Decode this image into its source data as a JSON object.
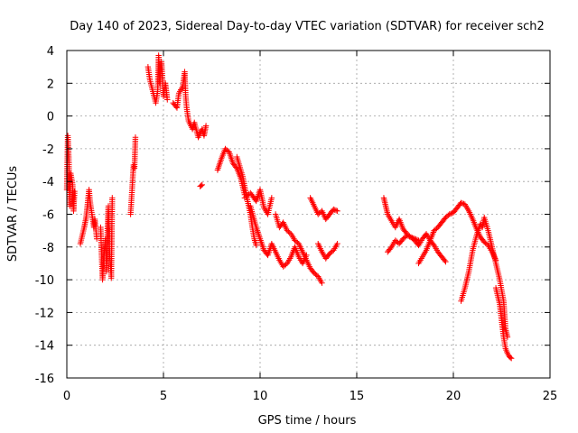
{
  "chart_data": {
    "type": "scatter",
    "title": "Day 140 of 2023, Sidereal Day-to-day VTEC variation (SDTVAR) for receiver sch2",
    "xlabel": "GPS time / hours",
    "ylabel": "SDTVAR / TECUs",
    "xlim": [
      0,
      25
    ],
    "ylim": [
      -16,
      4
    ],
    "xticks": [
      0,
      5,
      10,
      15,
      20,
      25
    ],
    "yticks": [
      -16,
      -14,
      -12,
      -10,
      -8,
      -6,
      -4,
      -2,
      0,
      2,
      4
    ],
    "grid": true,
    "marker": "+",
    "color": "#ff0000",
    "series": [
      {
        "name": "SDTVAR",
        "segments": [
          [
            [
              0.0,
              -4.5
            ],
            [
              0.05,
              -1.2
            ],
            [
              0.1,
              -2.5
            ],
            [
              0.15,
              -5.5
            ],
            [
              0.2,
              -3.5
            ],
            [
              0.3,
              -4.2
            ],
            [
              0.35,
              -5.8
            ],
            [
              0.4,
              -4.6
            ]
          ],
          [
            [
              0.7,
              -7.8
            ],
            [
              0.9,
              -6.8
            ],
            [
              1.0,
              -6.2
            ],
            [
              1.15,
              -4.5
            ],
            [
              1.2,
              -5.2
            ],
            [
              1.4,
              -6.8
            ],
            [
              1.45,
              -6.3
            ],
            [
              1.55,
              -7.5
            ]
          ],
          [
            [
              1.75,
              -6.8
            ],
            [
              1.8,
              -8.5
            ],
            [
              1.85,
              -10.0
            ],
            [
              1.9,
              -8.8
            ],
            [
              2.0,
              -7.5
            ],
            [
              2.05,
              -9.5
            ],
            [
              2.1,
              -7.0
            ],
            [
              2.15,
              -5.5
            ],
            [
              2.2,
              -8.0
            ],
            [
              2.3,
              -9.9
            ],
            [
              2.35,
              -5.0
            ]
          ],
          [
            [
              3.3,
              -6.0
            ],
            [
              3.45,
              -3.0
            ],
            [
              3.5,
              -3.2
            ],
            [
              3.55,
              -1.3
            ]
          ],
          [
            [
              4.2,
              3.0
            ],
            [
              4.3,
              2.2
            ],
            [
              4.6,
              0.8
            ],
            [
              4.7,
              1.5
            ],
            [
              4.75,
              3.7
            ],
            [
              4.8,
              2.0
            ],
            [
              4.9,
              3.3
            ],
            [
              5.0,
              1.2
            ],
            [
              5.1,
              2.0
            ],
            [
              5.2,
              1.0
            ]
          ],
          [
            [
              5.5,
              0.8
            ],
            [
              5.7,
              0.5
            ],
            [
              5.8,
              1.4
            ],
            [
              6.0,
              1.8
            ],
            [
              6.1,
              2.7
            ],
            [
              6.15,
              1.2
            ],
            [
              6.2,
              0.5
            ],
            [
              6.3,
              -0.3
            ],
            [
              6.5,
              -0.8
            ],
            [
              6.6,
              -0.4
            ],
            [
              6.8,
              -1.3
            ],
            [
              7.0,
              -0.8
            ],
            [
              7.1,
              -1.2
            ],
            [
              7.2,
              -0.6
            ]
          ],
          [
            [
              6.9,
              -4.3
            ],
            [
              7.0,
              -4.2
            ]
          ],
          [
            [
              7.8,
              -3.3
            ],
            [
              8.0,
              -2.6
            ],
            [
              8.2,
              -2.0
            ],
            [
              8.4,
              -2.2
            ],
            [
              8.6,
              -2.9
            ],
            [
              8.8,
              -3.2
            ],
            [
              9.0,
              -3.8
            ],
            [
              9.2,
              -4.8
            ]
          ],
          [
            [
              8.8,
              -2.5
            ],
            [
              9.1,
              -3.7
            ],
            [
              9.3,
              -4.9
            ],
            [
              9.5,
              -6.0
            ],
            [
              9.6,
              -6.8
            ],
            [
              9.7,
              -7.5
            ],
            [
              9.8,
              -7.9
            ]
          ],
          [
            [
              9.2,
              -5.0
            ],
            [
              9.5,
              -4.7
            ],
            [
              9.8,
              -5.2
            ],
            [
              10.0,
              -4.5
            ],
            [
              10.2,
              -5.6
            ],
            [
              10.4,
              -6.0
            ],
            [
              10.6,
              -5.0
            ]
          ],
          [
            [
              9.5,
              -5.5
            ],
            [
              9.8,
              -6.8
            ],
            [
              10.0,
              -7.5
            ],
            [
              10.2,
              -8.2
            ],
            [
              10.4,
              -8.5
            ],
            [
              10.6,
              -7.8
            ],
            [
              10.8,
              -8.3
            ],
            [
              11.0,
              -8.8
            ],
            [
              11.2,
              -9.2
            ],
            [
              11.4,
              -9.0
            ],
            [
              11.6,
              -8.6
            ],
            [
              11.8,
              -8.0
            ],
            [
              12.0,
              -8.6
            ],
            [
              12.2,
              -9.0
            ],
            [
              12.4,
              -8.5
            ]
          ],
          [
            [
              10.8,
              -6.0
            ],
            [
              11.0,
              -6.8
            ],
            [
              11.2,
              -6.5
            ],
            [
              11.4,
              -7.0
            ],
            [
              11.6,
              -7.2
            ],
            [
              11.8,
              -7.6
            ],
            [
              12.0,
              -7.8
            ],
            [
              12.2,
              -8.3
            ],
            [
              12.4,
              -8.8
            ],
            [
              12.6,
              -9.3
            ],
            [
              12.8,
              -9.6
            ],
            [
              13.0,
              -9.8
            ],
            [
              13.2,
              -10.2
            ]
          ],
          [
            [
              12.6,
              -5.0
            ],
            [
              12.8,
              -5.5
            ],
            [
              13.0,
              -6.0
            ],
            [
              13.2,
              -5.8
            ],
            [
              13.4,
              -6.3
            ],
            [
              13.6,
              -6.0
            ],
            [
              13.8,
              -5.7
            ],
            [
              14.0,
              -5.8
            ]
          ],
          [
            [
              13.0,
              -7.8
            ],
            [
              13.2,
              -8.3
            ],
            [
              13.4,
              -8.7
            ],
            [
              13.6,
              -8.4
            ],
            [
              13.8,
              -8.2
            ],
            [
              14.0,
              -7.8
            ]
          ],
          [
            [
              16.4,
              -5.0
            ],
            [
              16.5,
              -5.5
            ],
            [
              16.6,
              -6.0
            ],
            [
              16.8,
              -6.4
            ],
            [
              17.0,
              -6.8
            ],
            [
              17.2,
              -6.3
            ],
            [
              17.4,
              -6.9
            ],
            [
              17.6,
              -7.2
            ],
            [
              17.8,
              -7.4
            ],
            [
              18.0,
              -7.5
            ],
            [
              18.2,
              -7.6
            ]
          ],
          [
            [
              16.6,
              -8.3
            ],
            [
              16.8,
              -8.0
            ],
            [
              17.0,
              -7.6
            ],
            [
              17.2,
              -7.8
            ],
            [
              17.4,
              -7.5
            ],
            [
              17.6,
              -7.3
            ],
            [
              17.8,
              -7.4
            ],
            [
              18.0,
              -7.6
            ],
            [
              18.2,
              -7.9
            ],
            [
              18.4,
              -7.5
            ],
            [
              18.6,
              -7.2
            ],
            [
              18.8,
              -7.6
            ],
            [
              19.0,
              -7.9
            ],
            [
              19.2,
              -8.3
            ],
            [
              19.4,
              -8.6
            ],
            [
              19.6,
              -8.9
            ]
          ],
          [
            [
              18.2,
              -9.0
            ],
            [
              18.4,
              -8.6
            ],
            [
              18.6,
              -8.2
            ],
            [
              18.8,
              -7.6
            ],
            [
              19.0,
              -7.0
            ],
            [
              19.2,
              -6.8
            ],
            [
              19.4,
              -6.5
            ],
            [
              19.6,
              -6.2
            ],
            [
              19.8,
              -6.0
            ],
            [
              20.0,
              -5.9
            ],
            [
              20.2,
              -5.6
            ],
            [
              20.4,
              -5.3
            ],
            [
              20.6,
              -5.4
            ],
            [
              20.8,
              -5.8
            ],
            [
              21.0,
              -6.3
            ],
            [
              21.2,
              -6.9
            ],
            [
              21.4,
              -7.4
            ],
            [
              21.6,
              -7.7
            ],
            [
              21.8,
              -7.9
            ],
            [
              22.0,
              -8.3
            ],
            [
              22.2,
              -8.8
            ]
          ],
          [
            [
              20.4,
              -11.3
            ],
            [
              20.6,
              -10.5
            ],
            [
              20.8,
              -9.5
            ],
            [
              21.0,
              -8.2
            ],
            [
              21.2,
              -7.3
            ],
            [
              21.4,
              -6.6
            ],
            [
              21.5,
              -6.8
            ],
            [
              21.6,
              -6.2
            ],
            [
              21.8,
              -7.0
            ],
            [
              22.0,
              -8.0
            ],
            [
              22.2,
              -9.0
            ],
            [
              22.4,
              -10.0
            ],
            [
              22.6,
              -11.3
            ],
            [
              22.7,
              -13.0
            ],
            [
              22.8,
              -13.5
            ]
          ],
          [
            [
              22.2,
              -10.5
            ],
            [
              22.4,
              -11.5
            ],
            [
              22.5,
              -12.5
            ],
            [
              22.6,
              -13.5
            ],
            [
              22.7,
              -14.2
            ],
            [
              22.8,
              -14.5
            ],
            [
              22.9,
              -14.7
            ],
            [
              23.0,
              -14.8
            ]
          ]
        ]
      }
    ]
  }
}
